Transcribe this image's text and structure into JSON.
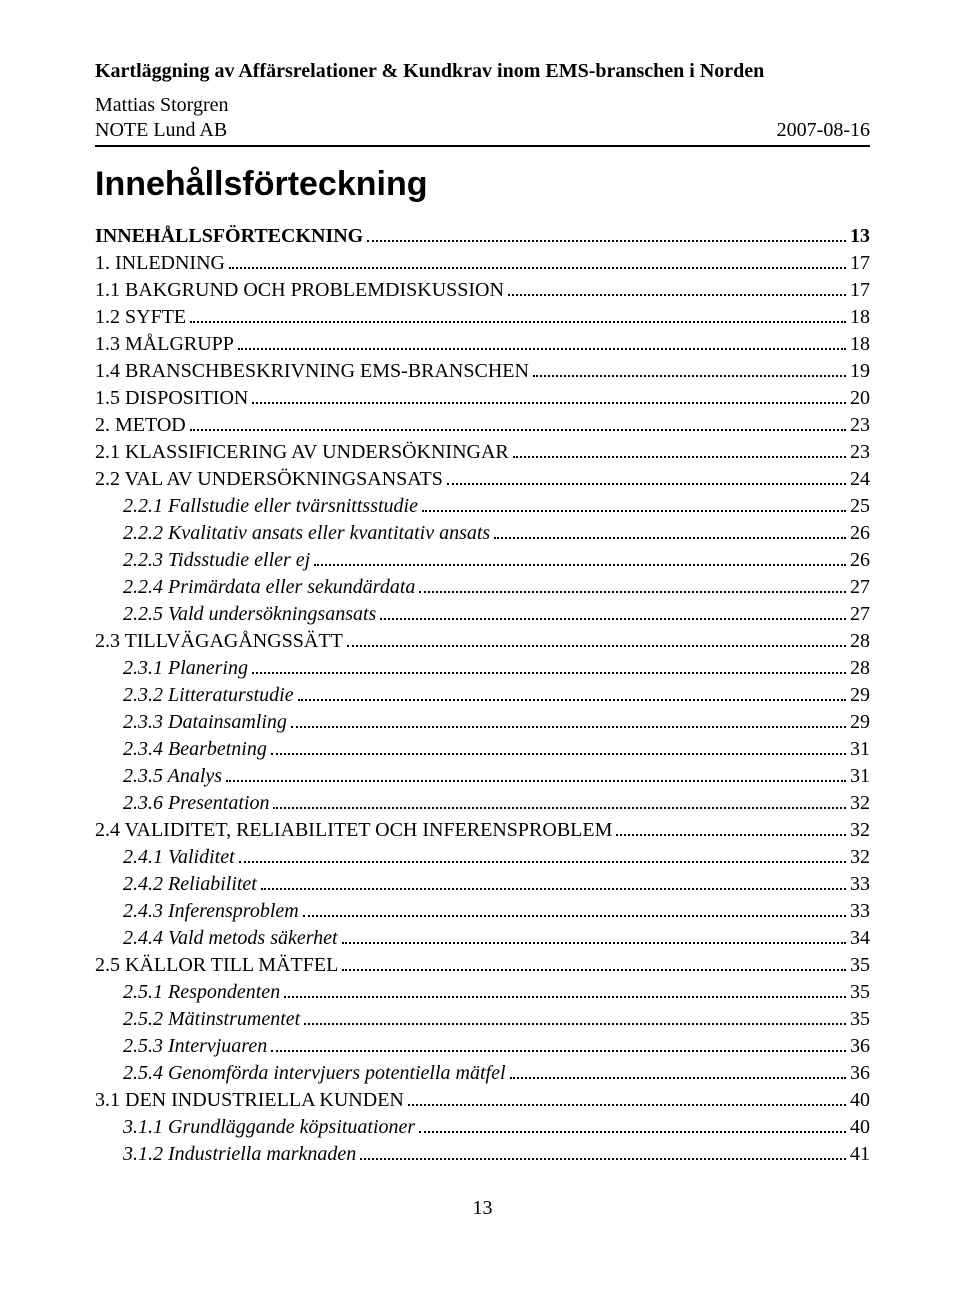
{
  "header": {
    "title": "Kartläggning av Affärsrelationer & Kundkrav inom EMS-branschen i Norden",
    "author": "Mattias Storgren",
    "company": "NOTE Lund AB",
    "date": "2007-08-16"
  },
  "heading": "Innehållsförteckning",
  "page_number": "13",
  "toc": [
    {
      "label": "INNEHÅLLSFÖRTECKNING",
      "page": "13",
      "level": 0,
      "style": "sc bold"
    },
    {
      "label": "1. INLEDNING",
      "page": "17",
      "level": 0,
      "style": "sc"
    },
    {
      "label": "1.1 BAKGRUND OCH PROBLEMDISKUSSION",
      "page": "17",
      "level": 1,
      "style": "sc"
    },
    {
      "label": "1.2 SYFTE",
      "page": "18",
      "level": 1,
      "style": "sc"
    },
    {
      "label": "1.3 MÅLGRUPP",
      "page": "18",
      "level": 1,
      "style": "sc"
    },
    {
      "label": "1.4 BRANSCHBESKRIVNING EMS-BRANSCHEN",
      "page": "19",
      "level": 1,
      "style": "sc"
    },
    {
      "label": "1.5 DISPOSITION",
      "page": "20",
      "level": 1,
      "style": "sc"
    },
    {
      "label": "2. METOD",
      "page": "23",
      "level": 0,
      "style": "sc"
    },
    {
      "label": "2.1 KLASSIFICERING AV UNDERSÖKNINGAR",
      "page": "23",
      "level": 1,
      "style": "sc"
    },
    {
      "label": "2.2 VAL AV UNDERSÖKNINGSANSATS",
      "page": "24",
      "level": 1,
      "style": "sc"
    },
    {
      "label": "2.2.1 Fallstudie eller tvärsnittsstudie",
      "page": "25",
      "level": 2,
      "style": "ital"
    },
    {
      "label": "2.2.2 Kvalitativ ansats eller kvantitativ ansats",
      "page": "26",
      "level": 2,
      "style": "ital"
    },
    {
      "label": "2.2.3 Tidsstudie eller ej",
      "page": "26",
      "level": 2,
      "style": "ital"
    },
    {
      "label": "2.2.4 Primärdata eller sekundärdata",
      "page": "27",
      "level": 2,
      "style": "ital"
    },
    {
      "label": "2.2.5 Vald undersökningsansats",
      "page": "27",
      "level": 2,
      "style": "ital"
    },
    {
      "label": "2.3 TILLVÄGAGÅNGSSÄTT",
      "page": "28",
      "level": 1,
      "style": "sc"
    },
    {
      "label": "2.3.1 Planering",
      "page": "28",
      "level": 2,
      "style": "ital"
    },
    {
      "label": "2.3.2 Litteraturstudie",
      "page": "29",
      "level": 2,
      "style": "ital"
    },
    {
      "label": "2.3.3 Datainsamling",
      "page": "29",
      "level": 2,
      "style": "ital"
    },
    {
      "label": "2.3.4 Bearbetning",
      "page": "31",
      "level": 2,
      "style": "ital"
    },
    {
      "label": "2.3.5 Analys",
      "page": "31",
      "level": 2,
      "style": "ital"
    },
    {
      "label": "2.3.6 Presentation",
      "page": "32",
      "level": 2,
      "style": "ital"
    },
    {
      "label": "2.4 VALIDITET, RELIABILITET OCH INFERENSPROBLEM",
      "page": "32",
      "level": 1,
      "style": "sc"
    },
    {
      "label": "2.4.1 Validitet",
      "page": "32",
      "level": 2,
      "style": "ital"
    },
    {
      "label": "2.4.2 Reliabilitet",
      "page": "33",
      "level": 2,
      "style": "ital"
    },
    {
      "label": "2.4.3 Inferensproblem",
      "page": "33",
      "level": 2,
      "style": "ital"
    },
    {
      "label": "2.4.4 Vald metods säkerhet",
      "page": "34",
      "level": 2,
      "style": "ital"
    },
    {
      "label": "2.5 KÄLLOR TILL MÄTFEL",
      "page": "35",
      "level": 1,
      "style": "sc"
    },
    {
      "label": "2.5.1 Respondenten",
      "page": "35",
      "level": 2,
      "style": "ital"
    },
    {
      "label": "2.5.2 Mätinstrumentet",
      "page": "35",
      "level": 2,
      "style": "ital"
    },
    {
      "label": "2.5.3 Intervjuaren",
      "page": "36",
      "level": 2,
      "style": "ital"
    },
    {
      "label": "2.5.4 Genomförda intervjuers potentiella mätfel",
      "page": "36",
      "level": 2,
      "style": "ital"
    },
    {
      "label": "3.1 DEN INDUSTRIELLA KUNDEN",
      "page": "40",
      "level": 1,
      "style": "sc"
    },
    {
      "label": "3.1.1 Grundläggande köpsituationer",
      "page": "40",
      "level": 2,
      "style": "ital"
    },
    {
      "label": "3.1.2 Industriella marknaden",
      "page": "41",
      "level": 2,
      "style": "ital"
    }
  ]
}
